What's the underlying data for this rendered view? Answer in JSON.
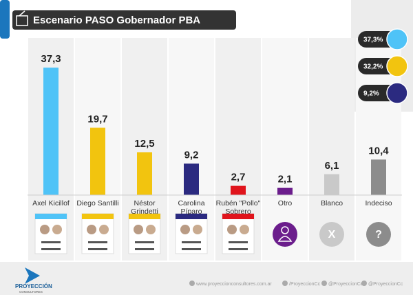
{
  "chart_data": {
    "type": "bar",
    "title": "Escenario PASO Gobernador PBA",
    "categories": [
      "Axel Kicillof",
      "Diego Santilli",
      "Néstor Grindetti",
      "Carolina Píparo",
      "Rubén \"Pollo\" Sobrero",
      "Otro",
      "Blanco",
      "Indeciso"
    ],
    "values": [
      37.3,
      19.7,
      12.5,
      9.2,
      2.7,
      2.1,
      6.1,
      10.4
    ],
    "value_labels": [
      "37,3",
      "19,7",
      "12,5",
      "9,2",
      "2,7",
      "2,1",
      "6,1",
      "10,4"
    ],
    "colors": [
      "#4fc3f7",
      "#f2c40f",
      "#f2c40f",
      "#2b2a80",
      "#e0141c",
      "#6b1d8c",
      "#c9c9c9",
      "#8c8c8c"
    ],
    "ylim": [
      0,
      46
    ],
    "party_totals": {
      "values": [
        37.3,
        32.2,
        9.2
      ],
      "value_labels": [
        "37,3%",
        "32,2%",
        "9,2%"
      ],
      "colors": [
        "#4fc3f7",
        "#f2c40f",
        "#2b2a80"
      ]
    },
    "ballot_icons": [
      "X",
      "?"
    ],
    "footer": {
      "brand": "PROYECCIÓN",
      "brand_sub": "CONSULTORES",
      "links": [
        "www.proyeccionconsultores.com.ar",
        "/ProyeccionCc",
        "@ProyeccionCc",
        "@ProyeccionCc"
      ]
    }
  }
}
